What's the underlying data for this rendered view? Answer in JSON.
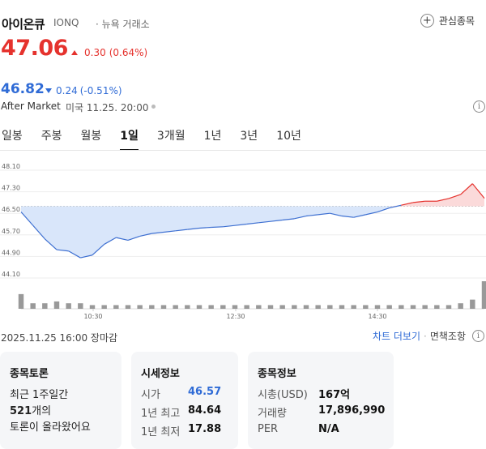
{
  "header": {
    "name": "아이온큐",
    "code": "IONQ",
    "exchange": "· 뉴욕 거래소",
    "favorite_label": "관심종목"
  },
  "price": {
    "current": "47.06",
    "change": "0.30",
    "change_pct": "(0.64%)",
    "direction": "up",
    "up_color": "#e5322d"
  },
  "after_market": {
    "price": "46.82",
    "change": "0.24",
    "change_pct": "(-0.51%)",
    "direction": "down",
    "label": "After Market",
    "time": "미국 11.25. 20:00",
    "down_color": "#2f6bd6"
  },
  "tabs": [
    {
      "label": "일봉",
      "active": false
    },
    {
      "label": "주봉",
      "active": false
    },
    {
      "label": "월봉",
      "active": false
    },
    {
      "label": "1일",
      "active": true
    },
    {
      "label": "3개월",
      "active": false
    },
    {
      "label": "1년",
      "active": false
    },
    {
      "label": "3년",
      "active": false
    },
    {
      "label": "10년",
      "active": false
    }
  ],
  "chart_data": {
    "type": "area",
    "title": "",
    "xlabel": "",
    "ylabel": "",
    "reference_price": 46.76,
    "ylim": [
      44.1,
      48.1
    ],
    "y_ticks": [
      "48.10",
      "47.30",
      "46.50",
      "45.70",
      "44.90",
      "44.10"
    ],
    "x_ticks": [
      "10:30",
      "12:30",
      "14:30"
    ],
    "x": [
      "09:30",
      "09:40",
      "09:50",
      "10:00",
      "10:10",
      "10:20",
      "10:30",
      "10:40",
      "10:50",
      "11:00",
      "11:10",
      "11:20",
      "11:30",
      "11:40",
      "11:50",
      "12:00",
      "12:10",
      "12:20",
      "12:30",
      "12:40",
      "12:50",
      "13:00",
      "13:10",
      "13:20",
      "13:30",
      "13:40",
      "13:50",
      "14:00",
      "14:10",
      "14:20",
      "14:30",
      "14:40",
      "14:50",
      "15:00",
      "15:10",
      "15:20",
      "15:30",
      "15:40",
      "15:50",
      "16:00"
    ],
    "values": [
      46.55,
      46.05,
      45.55,
      45.15,
      45.1,
      44.85,
      44.95,
      45.35,
      45.6,
      45.5,
      45.65,
      45.75,
      45.8,
      45.85,
      45.9,
      45.95,
      45.98,
      46.0,
      46.05,
      46.1,
      46.15,
      46.2,
      46.25,
      46.3,
      46.4,
      46.45,
      46.5,
      46.4,
      46.35,
      46.45,
      46.55,
      46.7,
      46.8,
      46.9,
      46.95,
      46.95,
      47.05,
      47.2,
      47.6,
      47.06
    ],
    "volume": [
      8,
      3,
      3,
      4,
      3,
      3,
      2,
      2,
      2,
      2,
      2,
      2,
      2,
      2,
      2,
      2,
      2,
      2,
      2,
      2,
      2,
      2,
      2,
      2,
      2,
      2,
      2,
      2,
      2,
      2,
      2,
      2,
      2,
      2,
      2,
      2,
      2,
      3,
      5,
      15
    ],
    "up_fill": "#fbdada",
    "down_fill": "#d9e6fa"
  },
  "footer": {
    "date": "2025.11.25 16:00 장마감",
    "chart_link": "차트 더보기",
    "dot": "·",
    "disclaimer": "면책조항"
  },
  "cards": {
    "discussion": {
      "title": "종목토론",
      "line1": "최근 1주일간",
      "count": "521",
      "count_suffix": "개의",
      "line3": "토론이 올라왔어요"
    },
    "quote": {
      "title": "시세정보",
      "rows": [
        {
          "label": "시가",
          "value": "46.57"
        },
        {
          "label": "1년 최고",
          "value": "84.64"
        },
        {
          "label": "1년 최저",
          "value": "17.88"
        }
      ]
    },
    "stock_info": {
      "title": "종목정보",
      "rows": [
        {
          "label": "시총(USD)",
          "value": "167억"
        },
        {
          "label": "거래량",
          "value": "17,896,990"
        },
        {
          "label": "PER",
          "value": "N/A"
        }
      ]
    }
  }
}
